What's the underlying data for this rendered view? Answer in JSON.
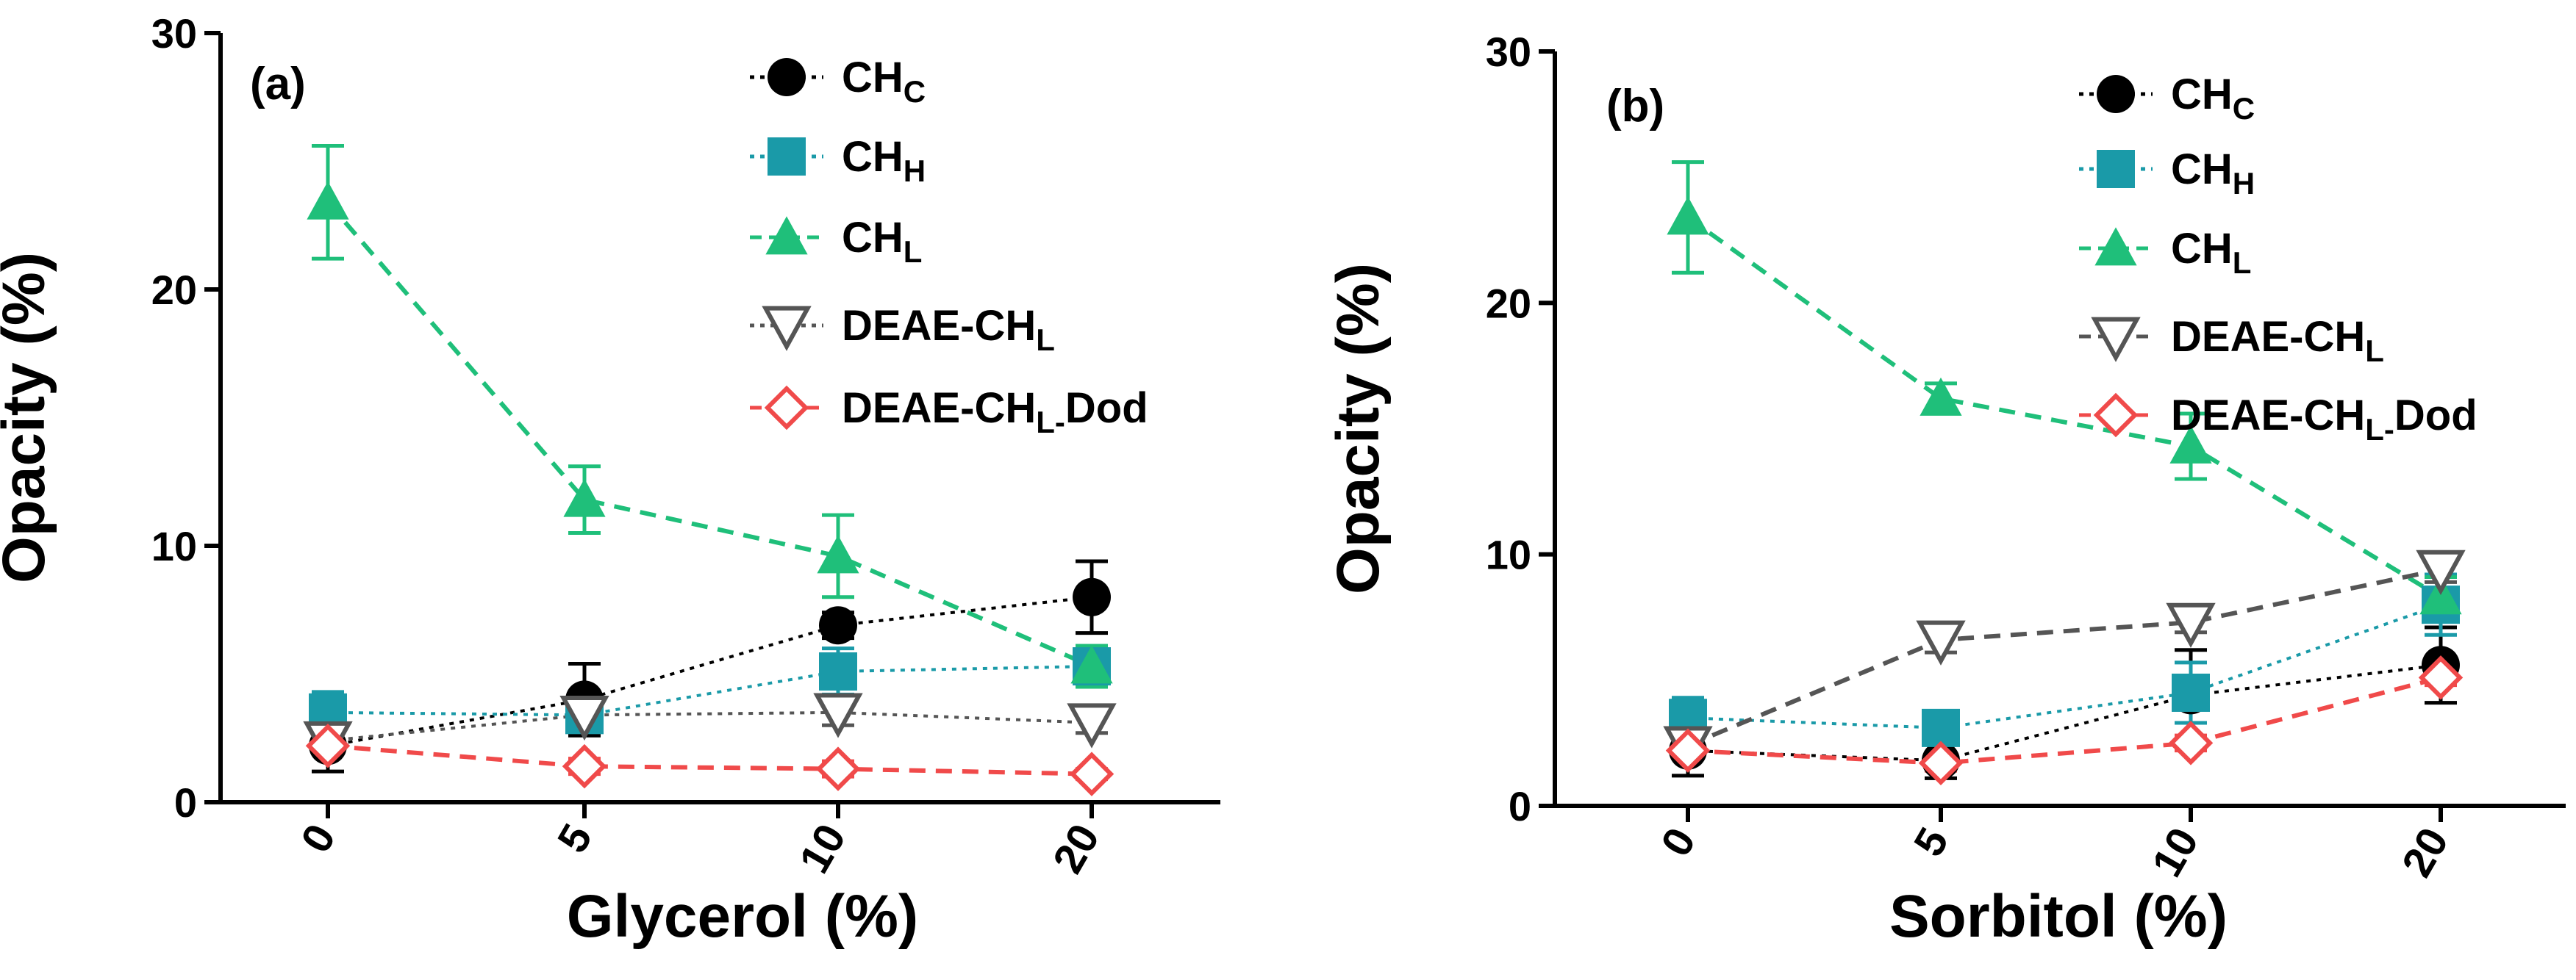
{
  "chart_data": [
    {
      "type": "line",
      "panel_label": "(a)",
      "xlabel": "Glycerol (%)",
      "ylabel": "Opacity (%)",
      "categories": [
        "0",
        "5",
        "10",
        "20"
      ],
      "ylim": [
        0,
        30
      ],
      "yticks": [
        "0",
        "10",
        "20",
        "30"
      ],
      "series": [
        {
          "name": "CH",
          "sub": "C",
          "color": "#000000",
          "marker": "circle",
          "dash": "dot",
          "values": [
            2.2,
            4.0,
            6.9,
            8.0
          ],
          "errors": [
            1.0,
            1.4,
            0.5,
            1.4
          ]
        },
        {
          "name": "CH",
          "sub": "H",
          "color": "#1a9aa8",
          "marker": "square",
          "dash": "dot",
          "values": [
            3.5,
            3.4,
            5.1,
            5.3
          ],
          "errors": [
            0.8,
            0.5,
            0.9,
            0.8
          ]
        },
        {
          "name": "CH",
          "sub": "L",
          "color": "#1fbf7a",
          "marker": "triangle",
          "dash": "dash",
          "values": [
            23.4,
            11.8,
            9.6,
            5.3
          ],
          "errors": [
            2.2,
            1.3,
            1.6,
            0.8
          ]
        },
        {
          "name": "DEAE-CH",
          "sub": "L",
          "color": "#555555",
          "marker": "triangle-down",
          "dash": "dot",
          "values": [
            2.4,
            3.4,
            3.5,
            3.1
          ],
          "errors": [
            0.5,
            0.4,
            0.5,
            0.4
          ]
        },
        {
          "name": "DEAE-CH",
          "sub": "L-",
          "suffix": "Dod",
          "color": "#f04a4a",
          "marker": "diamond",
          "dash": "dash",
          "values": [
            2.2,
            1.4,
            1.3,
            1.1
          ],
          "errors": [
            0.3,
            0.3,
            0.3,
            0.2
          ]
        }
      ]
    },
    {
      "type": "line",
      "panel_label": "(b)",
      "xlabel": "Sorbitol (%)",
      "ylabel": "Opacity (%)",
      "categories": [
        "0",
        "5",
        "10",
        "20"
      ],
      "ylim": [
        0,
        30
      ],
      "yticks": [
        "0",
        "10",
        "20",
        "30"
      ],
      "series": [
        {
          "name": "CH",
          "sub": "C",
          "color": "#000000",
          "marker": "circle",
          "dash": "dot",
          "values": [
            2.2,
            1.8,
            4.4,
            5.6
          ],
          "errors": [
            1.0,
            0.7,
            1.8,
            1.5
          ]
        },
        {
          "name": "CH",
          "sub": "H",
          "color": "#1a9aa8",
          "marker": "square",
          "dash": "dot",
          "values": [
            3.5,
            3.1,
            4.5,
            8.0
          ],
          "errors": [
            0.8,
            0.5,
            1.2,
            1.2
          ]
        },
        {
          "name": "CH",
          "sub": "L",
          "color": "#1fbf7a",
          "marker": "triangle",
          "dash": "dash",
          "values": [
            23.4,
            16.2,
            14.3,
            8.3
          ],
          "errors": [
            2.2,
            0.6,
            1.3,
            0.8
          ]
        },
        {
          "name": "DEAE-CH",
          "sub": "L",
          "color": "#555555",
          "marker": "triangle-down",
          "dash": "dash",
          "values": [
            2.4,
            6.6,
            7.3,
            9.4
          ],
          "errors": [
            0.5,
            0.5,
            0.4,
            0.5
          ]
        },
        {
          "name": "DEAE-CH",
          "sub": "L-",
          "suffix": "Dod",
          "color": "#f04a4a",
          "marker": "diamond",
          "dash": "dash",
          "values": [
            2.2,
            1.7,
            2.5,
            5.1
          ],
          "errors": [
            0.3,
            0.3,
            0.3,
            0.3
          ]
        }
      ]
    }
  ]
}
